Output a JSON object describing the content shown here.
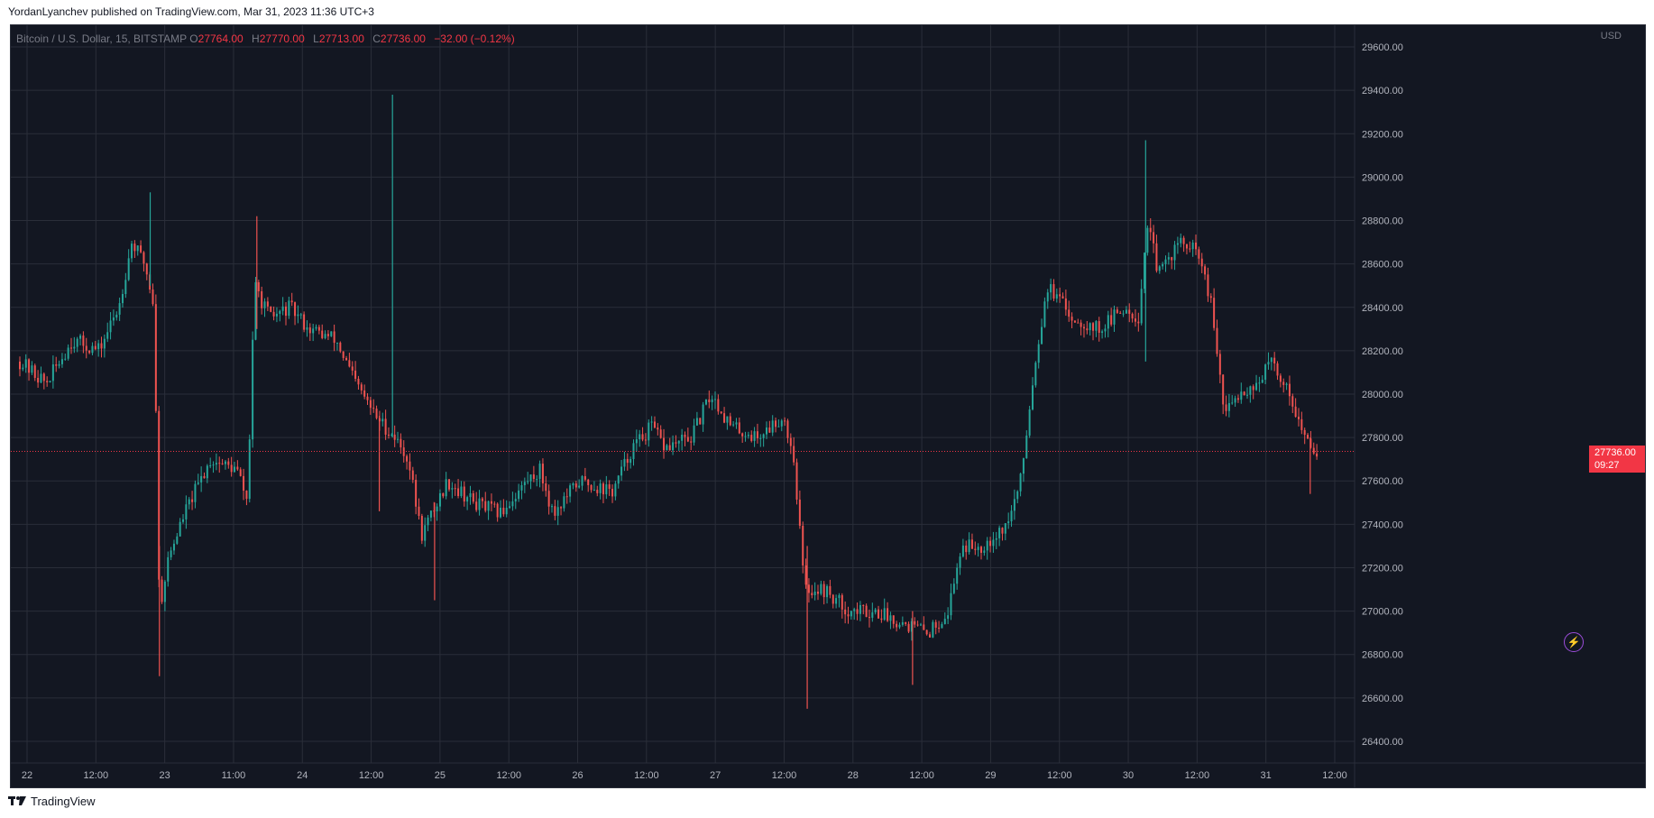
{
  "header": {
    "attribution": "YordanLyanchev published on TradingView.com, Mar 31, 2023 11:36 UTC+3"
  },
  "legend": {
    "symbol": "Bitcoin / U.S. Dollar, 15, BITSTAMP",
    "open_key": "O",
    "open": "27764.00",
    "high_key": "H",
    "high": "27770.00",
    "low_key": "L",
    "low": "27713.00",
    "close_key": "C",
    "close": "27736.00",
    "change": "−32.00 (−0.12%)"
  },
  "price_axis": {
    "currency": "USD",
    "current_price": "27736.00",
    "countdown": "09:27"
  },
  "colors": {
    "background": "#131722",
    "grid": "#2a2e39",
    "up": "#26a69a",
    "down": "#ef5350",
    "axis_text": "#b2b5be",
    "price_tag": "#f23645"
  },
  "footer": {
    "brand": "TradingView"
  },
  "chart_data": {
    "type": "candlestick",
    "title": "Bitcoin / U.S. Dollar, 15, BITSTAMP",
    "ylabel": "USD",
    "ylim": [
      26300,
      29700
    ],
    "grid": true,
    "y_ticks": [
      "26400.00",
      "26600.00",
      "26800.00",
      "27000.00",
      "27200.00",
      "27400.00",
      "27600.00",
      "27800.00",
      "28000.00",
      "28200.00",
      "28400.00",
      "28600.00",
      "28800.00",
      "29000.00",
      "29200.00",
      "29400.00",
      "29600.00"
    ],
    "x_ticks": [
      "22",
      "12:00",
      "23",
      "11:00",
      "24",
      "12:00",
      "25",
      "12:00",
      "26",
      "12:00",
      "27",
      "12:00",
      "28",
      "12:00",
      "29",
      "12:00",
      "30",
      "12:00",
      "31",
      "12:00"
    ],
    "current_price": 27736,
    "price_path": [
      {
        "t": 0,
        "p": 28150
      },
      {
        "t": 2,
        "p": 28050
      },
      {
        "t": 4,
        "p": 28250
      },
      {
        "t": 6,
        "p": 28200
      },
      {
        "t": 7.5,
        "p": 28400
      },
      {
        "t": 8.5,
        "p": 28700
      },
      {
        "t": 9.5,
        "p": 28600
      },
      {
        "t": 10.2,
        "p": 28400
      },
      {
        "t": 10.6,
        "p": 27000
      },
      {
        "t": 11.3,
        "p": 27250
      },
      {
        "t": 12.5,
        "p": 27450
      },
      {
        "t": 14.5,
        "p": 27700
      },
      {
        "t": 16.5,
        "p": 27650
      },
      {
        "t": 17.3,
        "p": 27500
      },
      {
        "t": 17.8,
        "p": 28500
      },
      {
        "t": 19,
        "p": 28350
      },
      {
        "t": 20.5,
        "p": 28400
      },
      {
        "t": 22,
        "p": 28300
      },
      {
        "t": 24,
        "p": 28250
      },
      {
        "t": 25.5,
        "p": 28050
      },
      {
        "t": 27,
        "p": 27900
      },
      {
        "t": 28.5,
        "p": 27800
      },
      {
        "t": 29.5,
        "p": 27700
      },
      {
        "t": 30.5,
        "p": 27350
      },
      {
        "t": 32.5,
        "p": 27600
      },
      {
        "t": 34.5,
        "p": 27500
      },
      {
        "t": 36.5,
        "p": 27450
      },
      {
        "t": 38.5,
        "p": 27600
      },
      {
        "t": 39.5,
        "p": 27650
      },
      {
        "t": 40.5,
        "p": 27450
      },
      {
        "t": 42.5,
        "p": 27600
      },
      {
        "t": 45,
        "p": 27550
      },
      {
        "t": 46.5,
        "p": 27750
      },
      {
        "t": 48,
        "p": 27850
      },
      {
        "t": 49,
        "p": 27750
      },
      {
        "t": 51,
        "p": 27800
      },
      {
        "t": 52.5,
        "p": 28000
      },
      {
        "t": 54,
        "p": 27850
      },
      {
        "t": 56,
        "p": 27800
      },
      {
        "t": 58,
        "p": 27900
      },
      {
        "t": 58.8,
        "p": 27700
      },
      {
        "t": 59.6,
        "p": 27100
      },
      {
        "t": 61,
        "p": 27100
      },
      {
        "t": 63,
        "p": 27000
      },
      {
        "t": 65,
        "p": 27000
      },
      {
        "t": 67,
        "p": 26950
      },
      {
        "t": 69,
        "p": 26900
      },
      {
        "t": 70.5,
        "p": 27000
      },
      {
        "t": 71.5,
        "p": 27300
      },
      {
        "t": 73,
        "p": 27300
      },
      {
        "t": 75,
        "p": 27400
      },
      {
        "t": 76,
        "p": 27600
      },
      {
        "t": 77,
        "p": 28100
      },
      {
        "t": 78,
        "p": 28500
      },
      {
        "t": 80,
        "p": 28350
      },
      {
        "t": 82,
        "p": 28300
      },
      {
        "t": 84,
        "p": 28400
      },
      {
        "t": 85,
        "p": 28350
      },
      {
        "t": 85.6,
        "p": 28800
      },
      {
        "t": 86.5,
        "p": 28550
      },
      {
        "t": 88,
        "p": 28700
      },
      {
        "t": 89.5,
        "p": 28650
      },
      {
        "t": 90.5,
        "p": 28400
      },
      {
        "t": 91.5,
        "p": 27900
      },
      {
        "t": 92.5,
        "p": 28000
      },
      {
        "t": 94,
        "p": 28050
      },
      {
        "t": 95,
        "p": 28150
      },
      {
        "t": 96.5,
        "p": 28000
      },
      {
        "t": 97.5,
        "p": 27800
      },
      {
        "t": 98.5,
        "p": 27736
      }
    ],
    "spikes": [
      {
        "t": 9.9,
        "high": 28930,
        "low": 28500
      },
      {
        "t": 10.6,
        "high": 27300,
        "low": 26700
      },
      {
        "t": 18.0,
        "high": 28820,
        "low": 28300
      },
      {
        "t": 28.3,
        "high": 29380,
        "low": 27800
      },
      {
        "t": 27.3,
        "high": 27900,
        "low": 27460
      },
      {
        "t": 31.5,
        "high": 27500,
        "low": 27050
      },
      {
        "t": 59.8,
        "high": 27300,
        "low": 26550
      },
      {
        "t": 67.8,
        "high": 27000,
        "low": 26660
      },
      {
        "t": 85.5,
        "high": 29170,
        "low": 28150
      },
      {
        "t": 98.0,
        "high": 27800,
        "low": 27540
      }
    ],
    "t_max": 100
  }
}
